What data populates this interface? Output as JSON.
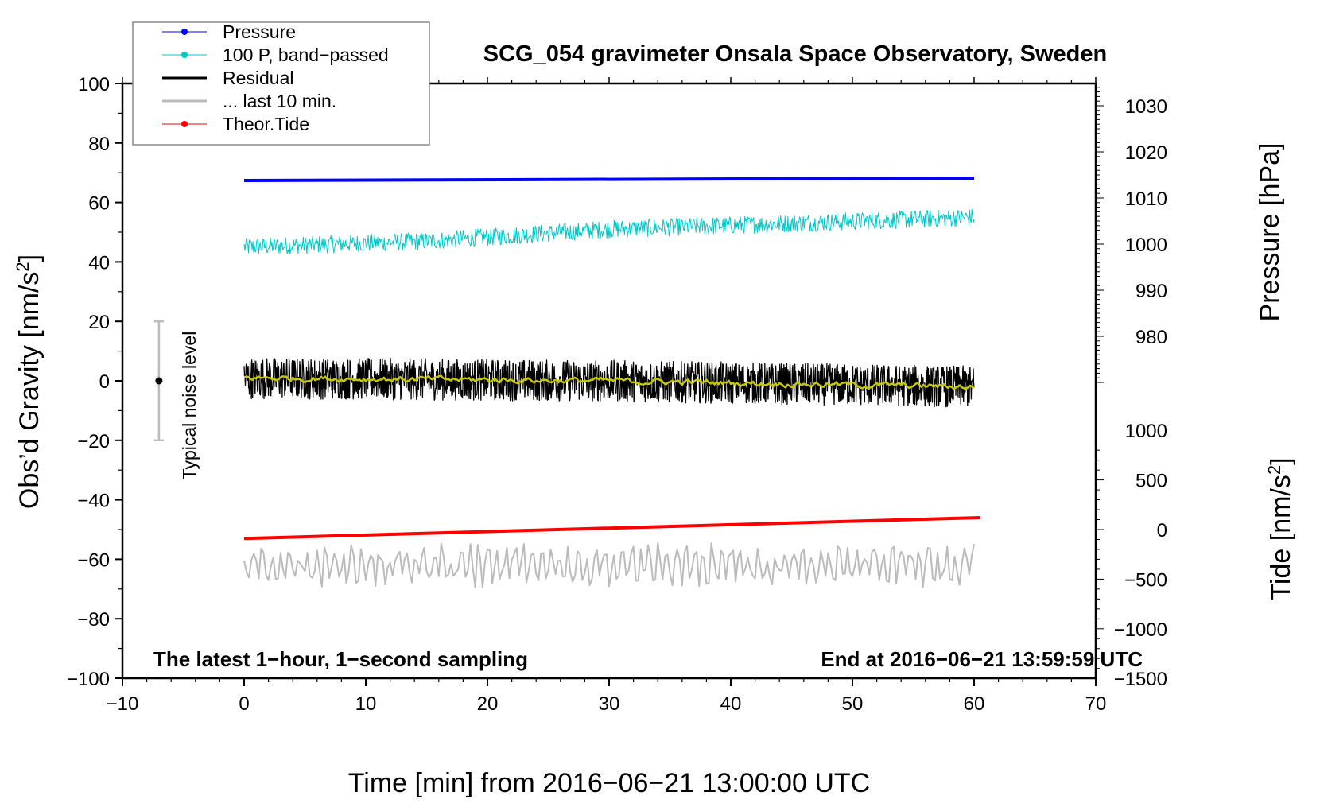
{
  "chart_data": {
    "type": "line",
    "title": "SCG_054 gravimeter Onsala Space Observatory, Sweden",
    "xlabel": "Time [min] from 2016−06−21 13:00:00 UTC",
    "ylabel_left": "Obs’d Gravity [nm/s",
    "ylabel_left_sup": "2",
    "ylabel_left_end": "]",
    "ylabel_right_pressure": "Pressure [hPa]",
    "ylabel_right_tide": "Tide [nm/s",
    "ylabel_right_tide_sup": "2",
    "ylabel_right_tide_end": "]",
    "xlim": [
      -10,
      70
    ],
    "ylim": [
      -100,
      100
    ],
    "pressure_ticks": [
      "1030",
      "1020",
      "1010",
      "1000",
      "990",
      "980"
    ],
    "pressure_tick_values": [
      1030,
      1020,
      1010,
      1000,
      990,
      980
    ],
    "tide_ticks": [
      "1000",
      "500",
      "0",
      "−500",
      "−1000",
      "−1500"
    ],
    "tide_tick_values": [
      1000,
      500,
      0,
      -500,
      -1000,
      -1500
    ],
    "x_ticks": [
      "−10",
      "0",
      "10",
      "20",
      "30",
      "40",
      "50",
      "60",
      "70"
    ],
    "x_tick_values": [
      -10,
      0,
      10,
      20,
      30,
      40,
      50,
      60,
      70
    ],
    "y_ticks": [
      "100",
      "80",
      "60",
      "40",
      "20",
      "0",
      "−20",
      "−40",
      "−60",
      "−80",
      "−100"
    ],
    "y_tick_values": [
      100,
      80,
      60,
      40,
      20,
      0,
      -20,
      -40,
      -60,
      -80,
      -100
    ],
    "annotation_left": "The latest 1−hour, 1−second sampling",
    "annotation_right": "End at 2016−06−21 13:59:59 UTC",
    "noise_label": "Typical noise level",
    "noise_level": {
      "x": -7,
      "center": 0,
      "low": -20,
      "high": 20
    },
    "legend": {
      "placement": "top-left",
      "entries": [
        {
          "label": "Pressure",
          "color": "#0000ff"
        },
        {
          "label": "100 P, band−passed",
          "color": "#00c8c8"
        },
        {
          "label": "Residual",
          "color": "#000000"
        },
        {
          "label": "... last 10 min.",
          "color": "#bbbbbb"
        },
        {
          "label": "Theor.Tide",
          "color": "#ff0000"
        }
      ]
    },
    "series": [
      {
        "name": "Pressure",
        "axis": "pressure_hPa",
        "color": "#0000ff",
        "x": [
          0,
          60
        ],
        "values": [
          1013.8,
          1014.3
        ]
      },
      {
        "name": "100 P, band-passed",
        "axis": "gravity",
        "color": "#00c8c8",
        "x": [
          0,
          15,
          30,
          45,
          60
        ],
        "values": [
          45,
          47,
          51,
          53,
          55
        ],
        "noise_amplitude": 3
      },
      {
        "name": "Residual",
        "axis": "gravity",
        "color": "#000000",
        "x": [
          0,
          30,
          60
        ],
        "values": [
          1,
          0,
          -2
        ],
        "noise_amplitude": 7
      },
      {
        "name": "Residual smoothed",
        "axis": "gravity",
        "color": "#c8c800",
        "x": [
          0,
          30,
          60
        ],
        "values": [
          1,
          0,
          -2
        ],
        "noise_amplitude": 2
      },
      {
        "name": "... last 10 min.",
        "axis": "gravity",
        "color": "#bbbbbb",
        "x": [
          0,
          60
        ],
        "values": [
          -62,
          -62
        ],
        "noise_amplitude": 7
      },
      {
        "name": "Theor.Tide",
        "axis": "tide_nm_s2",
        "color": "#ff0000",
        "x": [
          0,
          60.5
        ],
        "values": [
          -90,
          120
        ]
      }
    ]
  }
}
